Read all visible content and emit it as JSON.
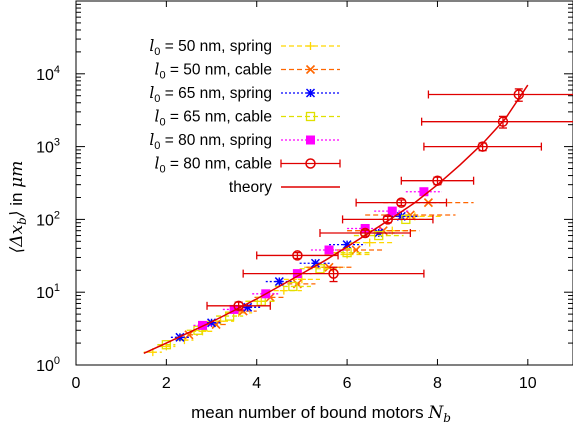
{
  "chart_data": {
    "type": "scatter",
    "xlabel_text": "mean number of bound motors ",
    "xlabel_symbol": "N",
    "xlabel_sub": "b",
    "ylabel_math": "⟨Δx",
    "ylabel_sub": "b",
    "ylabel_close": "⟩",
    "ylabel_text": " in ",
    "ylabel_unit": "μm",
    "xlim": [
      0,
      11
    ],
    "ylim": [
      1,
      100000
    ],
    "y_scale": "log",
    "x_ticks": [
      "0",
      "2",
      "4",
      "6",
      "8",
      "10"
    ],
    "y_ticks": [
      {
        "base": "10",
        "exp": "0"
      },
      {
        "base": "10",
        "exp": "1"
      },
      {
        "base": "10",
        "exp": "2"
      },
      {
        "base": "10",
        "exp": "3"
      },
      {
        "base": "10",
        "exp": "4"
      }
    ],
    "grid": false,
    "legend_position": "top-left",
    "series": [
      {
        "legend_lhs": "l",
        "legend_sub": "0",
        "legend_eq": " = 50",
        "legend_unit": " nm, spring",
        "color": "#ffd700",
        "marker": "plus",
        "line": "dash",
        "points": [
          {
            "x": 1.7,
            "y": 1.5,
            "xerr": 0.2,
            "yerr": 0
          },
          {
            "x": 2.0,
            "y": 1.8,
            "xerr": 0.2,
            "yerr": 0
          },
          {
            "x": 2.4,
            "y": 2.2,
            "xerr": 0.2,
            "yerr": 0
          },
          {
            "x": 2.8,
            "y": 2.9,
            "xerr": 0.25,
            "yerr": 0
          },
          {
            "x": 3.2,
            "y": 4.0,
            "xerr": 0.3,
            "yerr": 0
          },
          {
            "x": 3.6,
            "y": 5.2,
            "xerr": 0.3,
            "yerr": 0
          },
          {
            "x": 4.1,
            "y": 7.5,
            "xerr": 0.35,
            "yerr": 0
          },
          {
            "x": 4.6,
            "y": 10.5,
            "xerr": 0.4,
            "yerr": 0
          },
          {
            "x": 5.0,
            "y": 15,
            "xerr": 0.4,
            "yerr": 0
          },
          {
            "x": 5.5,
            "y": 22,
            "xerr": 0.45,
            "yerr": 0
          },
          {
            "x": 6.0,
            "y": 33,
            "xerr": 0.5,
            "yerr": 0
          },
          {
            "x": 6.5,
            "y": 48,
            "xerr": 0.5,
            "yerr": 0
          },
          {
            "x": 7.0,
            "y": 70,
            "xerr": 0.5,
            "yerr": 0
          },
          {
            "x": 7.5,
            "y": 110,
            "xerr": 0.6,
            "yerr": 0
          }
        ]
      },
      {
        "legend_lhs": "l",
        "legend_sub": "0",
        "legend_eq": " = 50",
        "legend_unit": " nm, cable",
        "color": "#ff6600",
        "marker": "x",
        "line": "dash",
        "points": [
          {
            "x": 2.5,
            "y": 2.6,
            "xerr": 0.2,
            "yerr": 0
          },
          {
            "x": 3.1,
            "y": 3.6,
            "xerr": 0.25,
            "yerr": 0
          },
          {
            "x": 3.7,
            "y": 5.5,
            "xerr": 0.3,
            "yerr": 0
          },
          {
            "x": 4.3,
            "y": 8.5,
            "xerr": 0.35,
            "yerr": 0
          },
          {
            "x": 4.9,
            "y": 13,
            "xerr": 0.4,
            "yerr": 0
          },
          {
            "x": 5.6,
            "y": 22,
            "xerr": 0.5,
            "yerr": 0
          },
          {
            "x": 6.2,
            "y": 38,
            "xerr": 0.6,
            "yerr": 0
          },
          {
            "x": 6.8,
            "y": 70,
            "xerr": 0.8,
            "yerr": 0
          },
          {
            "x": 7.4,
            "y": 115,
            "xerr": 1.0,
            "yerr": 0
          },
          {
            "x": 7.8,
            "y": 170,
            "xerr": 1.0,
            "yerr": 0
          }
        ]
      },
      {
        "legend_lhs": "l",
        "legend_sub": "0",
        "legend_eq": " = 65",
        "legend_unit": " nm, spring",
        "color": "#0000ff",
        "marker": "star",
        "line": "dot",
        "points": [
          {
            "x": 2.3,
            "y": 2.4,
            "xerr": 0.2,
            "yerr": 0
          },
          {
            "x": 3.0,
            "y": 3.8,
            "xerr": 0.2,
            "yerr": 0
          },
          {
            "x": 3.8,
            "y": 6.2,
            "xerr": 0.3,
            "yerr": 0
          },
          {
            "x": 4.5,
            "y": 14,
            "xerr": 0.3,
            "yerr": 0
          },
          {
            "x": 5.3,
            "y": 25,
            "xerr": 0.35,
            "yerr": 0
          },
          {
            "x": 6.0,
            "y": 45,
            "xerr": 0.4,
            "yerr": 0
          },
          {
            "x": 6.7,
            "y": 65,
            "xerr": 0.4,
            "yerr": 0
          },
          {
            "x": 7.2,
            "y": 110,
            "xerr": 0.4,
            "yerr": 0
          }
        ]
      },
      {
        "legend_lhs": "l",
        "legend_sub": "0",
        "legend_eq": " = 65",
        "legend_unit": " nm, cable",
        "color": "#e0e000",
        "marker": "square-open",
        "line": "dash",
        "points": [
          {
            "x": 2.0,
            "y": 1.9,
            "xerr": 0.2,
            "yerr": 0
          },
          {
            "x": 2.7,
            "y": 3.0,
            "xerr": 0.25,
            "yerr": 0
          },
          {
            "x": 3.4,
            "y": 4.7,
            "xerr": 0.3,
            "yerr": 0
          },
          {
            "x": 4.1,
            "y": 7.5,
            "xerr": 0.35,
            "yerr": 0
          },
          {
            "x": 4.8,
            "y": 12,
            "xerr": 0.4,
            "yerr": 0
          },
          {
            "x": 5.4,
            "y": 21,
            "xerr": 0.45,
            "yerr": 0
          },
          {
            "x": 6.0,
            "y": 35,
            "xerr": 0.5,
            "yerr": 0
          },
          {
            "x": 6.7,
            "y": 60,
            "xerr": 0.55,
            "yerr": 0
          },
          {
            "x": 7.3,
            "y": 100,
            "xerr": 0.6,
            "yerr": 0
          }
        ]
      },
      {
        "legend_lhs": "l",
        "legend_sub": "0",
        "legend_eq": " = 80",
        "legend_unit": " nm, spring",
        "color": "#ff00ff",
        "marker": "square-filled",
        "line": "dot",
        "points": [
          {
            "x": 2.8,
            "y": 3.5,
            "xerr": 0.2,
            "yerr": 0
          },
          {
            "x": 3.5,
            "y": 5.8,
            "xerr": 0.25,
            "yerr": 0
          },
          {
            "x": 4.2,
            "y": 9.5,
            "xerr": 0.3,
            "yerr": 0
          },
          {
            "x": 4.9,
            "y": 18,
            "xerr": 0.35,
            "yerr": 0
          },
          {
            "x": 5.6,
            "y": 38,
            "xerr": 0.4,
            "yerr": 0
          },
          {
            "x": 6.4,
            "y": 75,
            "xerr": 0.4,
            "yerr": 0
          },
          {
            "x": 7.0,
            "y": 130,
            "xerr": 0.4,
            "yerr": 0
          },
          {
            "x": 7.7,
            "y": 240,
            "xerr": 0.4,
            "yerr": 0
          }
        ]
      },
      {
        "legend_lhs": "l",
        "legend_sub": "0",
        "legend_eq": " = 80",
        "legend_unit": " nm, cable",
        "color": "#e00000",
        "marker": "circle",
        "line": "solid",
        "points": [
          {
            "x": 3.6,
            "y": 6.5,
            "xerr": 0.7,
            "yerr": 0.8
          },
          {
            "x": 4.9,
            "y": 32,
            "xerr": 0.9,
            "yerr": 3
          },
          {
            "x": 5.7,
            "y": 18,
            "xerr": 2.0,
            "yerr": 4
          },
          {
            "x": 6.4,
            "y": 65,
            "xerr": 1.0,
            "yerr": 6
          },
          {
            "x": 6.9,
            "y": 100,
            "xerr": 1.0,
            "yerr": 10
          },
          {
            "x": 7.2,
            "y": 170,
            "xerr": 1.0,
            "yerr": 15
          },
          {
            "x": 8.0,
            "y": 340,
            "xerr": 0.8,
            "yerr": 40
          },
          {
            "x": 9.0,
            "y": 1000,
            "xerr": 1.3,
            "yerr": 120
          },
          {
            "x": 9.45,
            "y": 2200,
            "xerr": 1.8,
            "yerr": 400
          },
          {
            "x": 9.8,
            "y": 5200,
            "xerr": 2.0,
            "yerr": 1000
          }
        ]
      }
    ],
    "theory": {
      "label": "theory",
      "color": "#e00000",
      "x": [
        1.5,
        2.0,
        2.5,
        3.0,
        3.5,
        4.0,
        4.5,
        5.0,
        5.5,
        6.0,
        6.5,
        7.0,
        7.5,
        8.0,
        8.5,
        9.0,
        9.5,
        10.0
      ],
      "y": [
        1.45,
        2.0,
        2.8,
        3.9,
        5.6,
        8.1,
        12,
        18,
        27,
        42,
        66,
        105,
        170,
        300,
        560,
        1100,
        2400,
        7000
      ]
    }
  }
}
